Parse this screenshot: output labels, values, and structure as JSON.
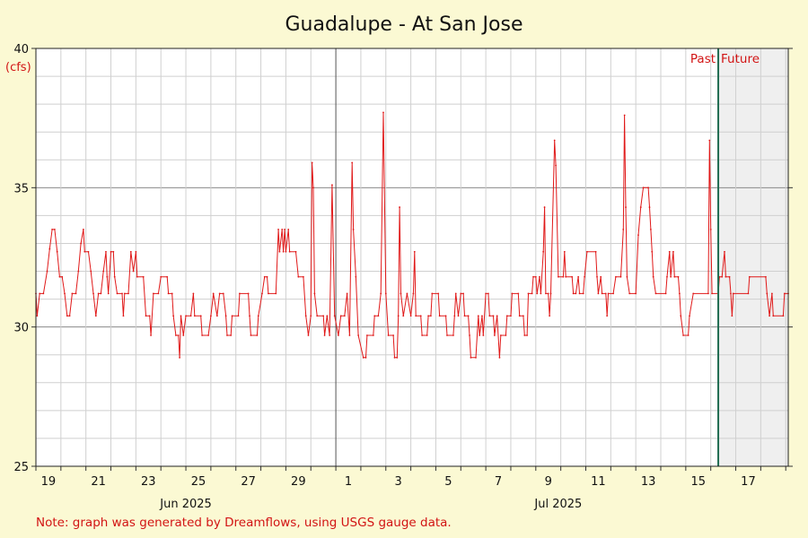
{
  "chart_data": {
    "type": "line",
    "title": "Guadalupe - At San Jose",
    "ylabel": "",
    "unit_label": "(cfs)",
    "ylim": [
      25,
      40
    ],
    "y_ticks": [
      "25",
      "30",
      "35",
      "40"
    ],
    "x_range_days": [
      0,
      30.1
    ],
    "past_future_boundary_day": 27.3,
    "past_label": "Past",
    "future_label": "Future",
    "x_ticks": [
      {
        "day": 0.5,
        "label": "19"
      },
      {
        "day": 2.5,
        "label": "21"
      },
      {
        "day": 4.5,
        "label": "23"
      },
      {
        "day": 6.5,
        "label": "25"
      },
      {
        "day": 8.5,
        "label": "27"
      },
      {
        "day": 10.5,
        "label": "29"
      },
      {
        "day": 12.5,
        "label": "1"
      },
      {
        "day": 14.5,
        "label": "3"
      },
      {
        "day": 16.5,
        "label": "5"
      },
      {
        "day": 18.5,
        "label": "7"
      },
      {
        "day": 20.5,
        "label": "9"
      },
      {
        "day": 22.5,
        "label": "11"
      },
      {
        "day": 24.5,
        "label": "13"
      },
      {
        "day": 26.5,
        "label": "15"
      },
      {
        "day": 28.5,
        "label": "17"
      }
    ],
    "month_labels": [
      {
        "day": 6.0,
        "label": "Jun 2025"
      },
      {
        "day": 20.9,
        "label": "Jul 2025"
      }
    ],
    "month_boundary_day": 12.0,
    "grid": true,
    "series": [
      {
        "color": "#e01818",
        "points": [
          [
            0.0,
            31.2
          ],
          [
            0.05,
            30.4
          ],
          [
            0.15,
            31.2
          ],
          [
            0.3,
            31.2
          ],
          [
            0.45,
            32.0
          ],
          [
            0.55,
            32.8
          ],
          [
            0.65,
            33.5
          ],
          [
            0.75,
            33.5
          ],
          [
            0.85,
            32.7
          ],
          [
            0.95,
            31.8
          ],
          [
            1.05,
            31.8
          ],
          [
            1.15,
            31.2
          ],
          [
            1.25,
            30.4
          ],
          [
            1.35,
            30.4
          ],
          [
            1.45,
            31.2
          ],
          [
            1.6,
            31.2
          ],
          [
            1.7,
            32.0
          ],
          [
            1.8,
            33.0
          ],
          [
            1.9,
            33.5
          ],
          [
            1.95,
            32.7
          ],
          [
            2.1,
            32.7
          ],
          [
            2.2,
            32.0
          ],
          [
            2.3,
            31.2
          ],
          [
            2.4,
            30.4
          ],
          [
            2.5,
            31.2
          ],
          [
            2.6,
            31.2
          ],
          [
            2.7,
            32.0
          ],
          [
            2.8,
            32.7
          ],
          [
            2.85,
            31.8
          ],
          [
            2.9,
            31.2
          ],
          [
            3.0,
            32.7
          ],
          [
            3.1,
            32.7
          ],
          [
            3.15,
            31.8
          ],
          [
            3.25,
            31.2
          ],
          [
            3.45,
            31.2
          ],
          [
            3.5,
            30.4
          ],
          [
            3.55,
            31.2
          ],
          [
            3.7,
            31.2
          ],
          [
            3.8,
            32.7
          ],
          [
            3.9,
            32.0
          ],
          [
            4.0,
            32.7
          ],
          [
            4.05,
            31.8
          ],
          [
            4.3,
            31.8
          ],
          [
            4.4,
            30.4
          ],
          [
            4.55,
            30.4
          ],
          [
            4.6,
            29.7
          ],
          [
            4.7,
            31.2
          ],
          [
            4.9,
            31.2
          ],
          [
            5.0,
            31.8
          ],
          [
            5.25,
            31.8
          ],
          [
            5.3,
            31.2
          ],
          [
            5.45,
            31.2
          ],
          [
            5.5,
            30.4
          ],
          [
            5.6,
            29.7
          ],
          [
            5.7,
            29.7
          ],
          [
            5.75,
            28.9
          ],
          [
            5.8,
            30.4
          ],
          [
            5.9,
            29.7
          ],
          [
            6.0,
            30.4
          ],
          [
            6.2,
            30.4
          ],
          [
            6.3,
            31.2
          ],
          [
            6.35,
            30.4
          ],
          [
            6.6,
            30.4
          ],
          [
            6.65,
            29.7
          ],
          [
            6.9,
            29.7
          ],
          [
            7.0,
            30.4
          ],
          [
            7.1,
            31.2
          ],
          [
            7.25,
            30.4
          ],
          [
            7.35,
            31.2
          ],
          [
            7.5,
            31.2
          ],
          [
            7.6,
            30.4
          ],
          [
            7.65,
            29.7
          ],
          [
            7.8,
            29.7
          ],
          [
            7.85,
            30.4
          ],
          [
            8.1,
            30.4
          ],
          [
            8.15,
            31.2
          ],
          [
            8.5,
            31.2
          ],
          [
            8.55,
            30.4
          ],
          [
            8.6,
            29.7
          ],
          [
            8.85,
            29.7
          ],
          [
            8.9,
            30.4
          ],
          [
            9.05,
            31.2
          ],
          [
            9.15,
            31.8
          ],
          [
            9.25,
            31.8
          ],
          [
            9.3,
            31.2
          ],
          [
            9.6,
            31.2
          ],
          [
            9.7,
            33.5
          ],
          [
            9.75,
            32.7
          ],
          [
            9.85,
            33.5
          ],
          [
            9.9,
            32.7
          ],
          [
            9.95,
            33.5
          ],
          [
            10.0,
            32.7
          ],
          [
            10.1,
            33.5
          ],
          [
            10.15,
            32.7
          ],
          [
            10.4,
            32.7
          ],
          [
            10.5,
            31.8
          ],
          [
            10.7,
            31.8
          ],
          [
            10.8,
            30.4
          ],
          [
            10.9,
            29.7
          ],
          [
            11.0,
            30.4
          ],
          [
            11.05,
            35.9
          ],
          [
            11.1,
            35.0
          ],
          [
            11.15,
            31.2
          ],
          [
            11.25,
            30.4
          ],
          [
            11.5,
            30.4
          ],
          [
            11.55,
            29.7
          ],
          [
            11.65,
            30.4
          ],
          [
            11.75,
            29.7
          ],
          [
            11.85,
            35.1
          ],
          [
            11.95,
            30.4
          ],
          [
            12.1,
            29.7
          ],
          [
            12.2,
            30.4
          ],
          [
            12.35,
            30.4
          ],
          [
            12.45,
            31.2
          ],
          [
            12.55,
            29.7
          ],
          [
            12.65,
            35.9
          ],
          [
            12.7,
            33.5
          ],
          [
            12.8,
            31.8
          ],
          [
            12.9,
            29.7
          ],
          [
            13.1,
            28.9
          ],
          [
            13.2,
            28.9
          ],
          [
            13.25,
            29.7
          ],
          [
            13.5,
            29.7
          ],
          [
            13.55,
            30.4
          ],
          [
            13.7,
            30.4
          ],
          [
            13.8,
            31.2
          ],
          [
            13.9,
            37.7
          ],
          [
            14.0,
            31.2
          ],
          [
            14.1,
            29.7
          ],
          [
            14.3,
            29.7
          ],
          [
            14.35,
            28.9
          ],
          [
            14.45,
            28.9
          ],
          [
            14.5,
            30.4
          ],
          [
            14.55,
            34.3
          ],
          [
            14.6,
            31.2
          ],
          [
            14.7,
            30.4
          ],
          [
            14.85,
            31.2
          ],
          [
            15.0,
            30.4
          ],
          [
            15.1,
            31.2
          ],
          [
            15.15,
            32.7
          ],
          [
            15.2,
            30.4
          ],
          [
            15.4,
            30.4
          ],
          [
            15.45,
            29.7
          ],
          [
            15.65,
            29.7
          ],
          [
            15.7,
            30.4
          ],
          [
            15.8,
            30.4
          ],
          [
            15.85,
            31.2
          ],
          [
            16.1,
            31.2
          ],
          [
            16.15,
            30.4
          ],
          [
            16.4,
            30.4
          ],
          [
            16.45,
            29.7
          ],
          [
            16.7,
            29.7
          ],
          [
            16.75,
            30.4
          ],
          [
            16.8,
            31.2
          ],
          [
            16.9,
            30.4
          ],
          [
            17.0,
            31.2
          ],
          [
            17.1,
            31.2
          ],
          [
            17.15,
            30.4
          ],
          [
            17.3,
            30.4
          ],
          [
            17.35,
            29.7
          ],
          [
            17.4,
            28.9
          ],
          [
            17.6,
            28.9
          ],
          [
            17.7,
            30.4
          ],
          [
            17.75,
            29.7
          ],
          [
            17.85,
            30.4
          ],
          [
            17.9,
            29.7
          ],
          [
            18.0,
            31.2
          ],
          [
            18.1,
            31.2
          ],
          [
            18.15,
            30.4
          ],
          [
            18.3,
            30.4
          ],
          [
            18.35,
            29.7
          ],
          [
            18.45,
            30.4
          ],
          [
            18.55,
            28.9
          ],
          [
            18.6,
            29.7
          ],
          [
            18.8,
            29.7
          ],
          [
            18.85,
            30.4
          ],
          [
            19.0,
            30.4
          ],
          [
            19.05,
            31.2
          ],
          [
            19.3,
            31.2
          ],
          [
            19.35,
            30.4
          ],
          [
            19.5,
            30.4
          ],
          [
            19.55,
            29.7
          ],
          [
            19.65,
            29.7
          ],
          [
            19.7,
            31.2
          ],
          [
            19.85,
            31.2
          ],
          [
            19.9,
            31.8
          ],
          [
            20.0,
            31.8
          ],
          [
            20.05,
            31.2
          ],
          [
            20.15,
            31.8
          ],
          [
            20.2,
            31.2
          ],
          [
            20.3,
            32.7
          ],
          [
            20.35,
            34.3
          ],
          [
            20.4,
            31.2
          ],
          [
            20.5,
            31.2
          ],
          [
            20.55,
            30.4
          ],
          [
            20.6,
            31.2
          ],
          [
            20.75,
            36.7
          ],
          [
            20.8,
            35.8
          ],
          [
            20.9,
            31.8
          ],
          [
            21.1,
            31.8
          ],
          [
            21.15,
            32.7
          ],
          [
            21.2,
            31.8
          ],
          [
            21.45,
            31.8
          ],
          [
            21.5,
            31.2
          ],
          [
            21.6,
            31.2
          ],
          [
            21.7,
            31.8
          ],
          [
            21.75,
            31.2
          ],
          [
            21.9,
            31.2
          ],
          [
            21.95,
            31.8
          ],
          [
            22.05,
            32.7
          ],
          [
            22.4,
            32.7
          ],
          [
            22.45,
            31.8
          ],
          [
            22.5,
            31.2
          ],
          [
            22.6,
            31.8
          ],
          [
            22.65,
            31.2
          ],
          [
            22.8,
            31.2
          ],
          [
            22.85,
            30.4
          ],
          [
            22.9,
            31.2
          ],
          [
            23.1,
            31.2
          ],
          [
            23.2,
            31.8
          ],
          [
            23.4,
            31.8
          ],
          [
            23.5,
            33.5
          ],
          [
            23.55,
            37.6
          ],
          [
            23.6,
            34.3
          ],
          [
            23.65,
            31.8
          ],
          [
            23.75,
            31.2
          ],
          [
            24.0,
            31.2
          ],
          [
            24.1,
            33.3
          ],
          [
            24.2,
            34.3
          ],
          [
            24.3,
            35.0
          ],
          [
            24.5,
            35.0
          ],
          [
            24.55,
            34.3
          ],
          [
            24.6,
            33.5
          ],
          [
            24.65,
            32.7
          ],
          [
            24.7,
            31.8
          ],
          [
            24.8,
            31.2
          ],
          [
            25.2,
            31.2
          ],
          [
            25.25,
            31.8
          ],
          [
            25.35,
            32.7
          ],
          [
            25.4,
            31.8
          ],
          [
            25.5,
            32.7
          ],
          [
            25.55,
            31.8
          ],
          [
            25.7,
            31.8
          ],
          [
            25.75,
            31.2
          ],
          [
            25.8,
            30.4
          ],
          [
            25.9,
            29.7
          ],
          [
            26.1,
            29.7
          ],
          [
            26.15,
            30.4
          ],
          [
            26.3,
            31.2
          ],
          [
            26.9,
            31.2
          ],
          [
            26.95,
            36.7
          ],
          [
            27.0,
            33.5
          ],
          [
            27.05,
            31.2
          ],
          [
            27.3,
            31.2
          ],
          [
            27.35,
            31.8
          ],
          [
            27.45,
            31.8
          ],
          [
            27.55,
            32.7
          ],
          [
            27.6,
            31.8
          ],
          [
            27.75,
            31.8
          ],
          [
            27.8,
            31.2
          ],
          [
            27.85,
            30.4
          ],
          [
            27.9,
            31.2
          ],
          [
            28.5,
            31.2
          ],
          [
            28.55,
            31.8
          ],
          [
            29.2,
            31.8
          ],
          [
            29.25,
            31.2
          ],
          [
            29.35,
            30.4
          ],
          [
            29.45,
            31.2
          ],
          [
            29.5,
            30.4
          ],
          [
            29.9,
            30.4
          ],
          [
            29.95,
            31.2
          ],
          [
            30.1,
            31.2
          ]
        ]
      }
    ]
  },
  "note": "Note: graph was generated by Dreamflows, using USGS gauge data."
}
